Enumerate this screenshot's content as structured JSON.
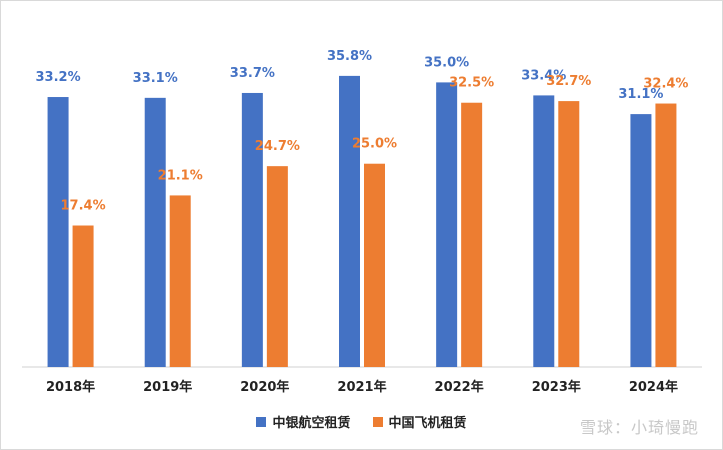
{
  "chart_data": {
    "type": "bar",
    "categories": [
      "2018年",
      "2019年",
      "2020年",
      "2021年",
      "2022年",
      "2023年",
      "2024年"
    ],
    "series": [
      {
        "name": "中银航空租赁",
        "color": "#4472C4",
        "values": [
          33.2,
          33.1,
          33.7,
          35.8,
          35.0,
          33.4,
          31.1
        ],
        "labels": [
          "33.2%",
          "33.1%",
          "33.7%",
          "35.8%",
          "35.0%",
          "33.4%",
          "31.1%"
        ]
      },
      {
        "name": "中国飞机租赁",
        "color": "#ED7D31",
        "values": [
          17.4,
          21.1,
          24.7,
          25.0,
          32.5,
          32.7,
          32.4
        ],
        "labels": [
          "17.4%",
          "21.1%",
          "24.7%",
          "25.0%",
          "32.5%",
          "32.7%",
          "32.4%"
        ]
      }
    ],
    "ylim": [
      0,
      38
    ],
    "grid": false,
    "legend_position": "bottom"
  },
  "watermark": "雪球：小琦慢跑"
}
